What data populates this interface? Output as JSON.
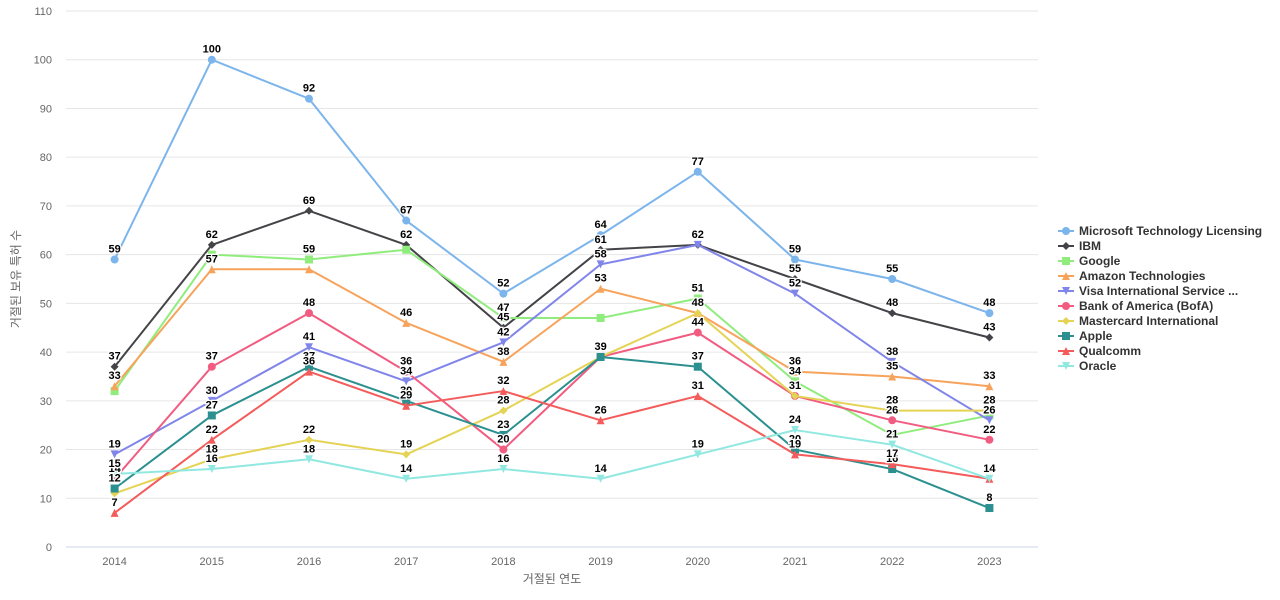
{
  "chart_data": {
    "type": "line",
    "title": "",
    "xlabel": "거절된 연도",
    "ylabel": "거절된 보유 특허 수",
    "categories": [
      "2014",
      "2015",
      "2016",
      "2017",
      "2018",
      "2019",
      "2020",
      "2021",
      "2022",
      "2023"
    ],
    "ylim": [
      0,
      110
    ],
    "yticks": [
      0,
      10,
      20,
      30,
      40,
      50,
      60,
      70,
      80,
      90,
      100,
      110
    ],
    "grid": true,
    "legend_position": "right",
    "series": [
      {
        "name": "Microsoft Technology Licensing",
        "color": "#7cb5ec",
        "marker": "circle",
        "values": [
          59,
          100,
          92,
          67,
          52,
          64,
          77,
          59,
          55,
          48
        ]
      },
      {
        "name": "IBM",
        "color": "#434348",
        "marker": "diamond",
        "values": [
          37,
          62,
          69,
          62,
          45,
          61,
          62,
          55,
          48,
          43
        ]
      },
      {
        "name": "Google",
        "color": "#90ed7d",
        "marker": "square",
        "values": [
          32,
          60,
          59,
          61,
          47,
          47,
          51,
          34,
          23,
          27
        ]
      },
      {
        "name": "Amazon Technologies",
        "color": "#f7a35c",
        "marker": "triangle",
        "values": [
          33,
          57,
          57,
          46,
          38,
          53,
          48,
          36,
          35,
          33
        ]
      },
      {
        "name": "Visa International Service ...",
        "color": "#8085e9",
        "marker": "triangle-down",
        "values": [
          19,
          30,
          41,
          34,
          42,
          58,
          62,
          52,
          38,
          26
        ]
      },
      {
        "name": "Bank of America (BofA)",
        "color": "#f15c80",
        "marker": "circle",
        "values": [
          14,
          37,
          48,
          36,
          20,
          39,
          44,
          31,
          26,
          22
        ]
      },
      {
        "name": "Mastercard International",
        "color": "#e4d354",
        "marker": "diamond",
        "values": [
          11,
          18,
          22,
          19,
          28,
          39,
          48,
          31,
          28,
          28
        ]
      },
      {
        "name": "Apple",
        "color": "#2b908f",
        "marker": "square",
        "values": [
          12,
          27,
          37,
          30,
          23,
          39,
          37,
          20,
          16,
          8
        ]
      },
      {
        "name": "Qualcomm",
        "color": "#f45b5b",
        "marker": "triangle",
        "values": [
          7,
          22,
          36,
          29,
          32,
          26,
          31,
          19,
          17,
          14
        ]
      },
      {
        "name": "Oracle",
        "color": "#91e8e1",
        "marker": "triangle-down",
        "values": [
          15,
          16,
          18,
          14,
          16,
          14,
          19,
          24,
          21,
          14
        ]
      }
    ],
    "data_labels": [
      {
        "series": 0,
        "points": [
          0,
          1,
          2,
          3,
          4,
          5,
          6,
          7,
          8,
          9
        ]
      },
      {
        "series": 1,
        "points": [
          0,
          1,
          2,
          3,
          4,
          5,
          6,
          7,
          8,
          9
        ]
      },
      {
        "series": 2,
        "points": [
          2,
          4,
          6,
          7
        ]
      },
      {
        "series": 3,
        "points": [
          0,
          1,
          3,
          4,
          5,
          6,
          7,
          8,
          9
        ]
      },
      {
        "series": 4,
        "points": [
          0,
          1,
          2,
          3,
          4,
          5,
          6,
          7,
          8,
          9
        ]
      },
      {
        "series": 5,
        "points": [
          0,
          1,
          2,
          3,
          4,
          5,
          6,
          7,
          8,
          9
        ]
      },
      {
        "series": 6,
        "points": [
          1,
          2,
          3,
          4,
          5,
          6,
          7,
          8,
          9
        ]
      },
      {
        "series": 7,
        "points": [
          0,
          1,
          2,
          3,
          4,
          5,
          6,
          7,
          8,
          9
        ]
      },
      {
        "series": 8,
        "points": [
          0,
          1,
          2,
          3,
          4,
          5,
          6,
          7,
          8,
          9
        ]
      },
      {
        "series": 9,
        "points": [
          0,
          1,
          2,
          3,
          4,
          5,
          6,
          7,
          8,
          9
        ]
      }
    ]
  }
}
